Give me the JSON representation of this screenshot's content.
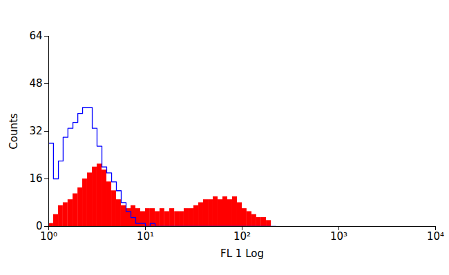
{
  "chart_data": {
    "type": "histogram",
    "x_label": "FL 1 Log",
    "y_label": "Counts",
    "log": "x",
    "xlim": [
      1,
      10000
    ],
    "xticks": [
      {
        "value": 1,
        "label": "10⁰"
      },
      {
        "value": 10,
        "label": "10¹"
      },
      {
        "value": 100,
        "label": "10²"
      },
      {
        "value": 1000,
        "label": "10³"
      },
      {
        "value": 10000,
        "label": "10⁴"
      }
    ],
    "ylim": [
      0,
      64
    ],
    "yticks": [
      0,
      16,
      32,
      48,
      64
    ],
    "bins": [
      1,
      1.12,
      1.26,
      1.41,
      1.58,
      1.78,
      2,
      2.24,
      2.51,
      2.82,
      3.16,
      3.55,
      3.98,
      4.47,
      5.01,
      5.62,
      6.31,
      7.08,
      7.94,
      8.91,
      10,
      11.2,
      12.6,
      14.1,
      15.8,
      17.8,
      20,
      22.4,
      25.1,
      28.2,
      31.6,
      35.5,
      39.8,
      44.7,
      50.1,
      56.2,
      63.1,
      70.8,
      79.4,
      89.1,
      100,
      112,
      126,
      141,
      158,
      178,
      200,
      224
    ],
    "series": [
      {
        "type": "area",
        "color": "#ff0000",
        "values": [
          1,
          4,
          7,
          8,
          9,
          11,
          13,
          16,
          18,
          20,
          21,
          19,
          15,
          12,
          9,
          7,
          6,
          7,
          6,
          5,
          6,
          6,
          5,
          6,
          5,
          6,
          5,
          5,
          6,
          6,
          7,
          8,
          9,
          9,
          10,
          9,
          10,
          9,
          10,
          8,
          6,
          5,
          4,
          3,
          3,
          2,
          0
        ]
      },
      {
        "type": "line",
        "color": "#0000ff",
        "values": [
          28,
          16,
          22,
          30,
          33,
          35,
          38,
          40,
          40,
          33,
          27,
          20,
          18,
          15,
          12,
          8,
          5,
          3,
          1,
          1,
          0,
          1,
          0,
          0,
          0,
          0,
          0,
          0,
          0,
          0,
          0,
          0,
          0,
          0,
          0,
          0,
          0,
          0,
          0,
          0,
          0,
          0,
          0,
          0,
          0,
          0,
          0
        ]
      }
    ],
    "grid": false
  }
}
